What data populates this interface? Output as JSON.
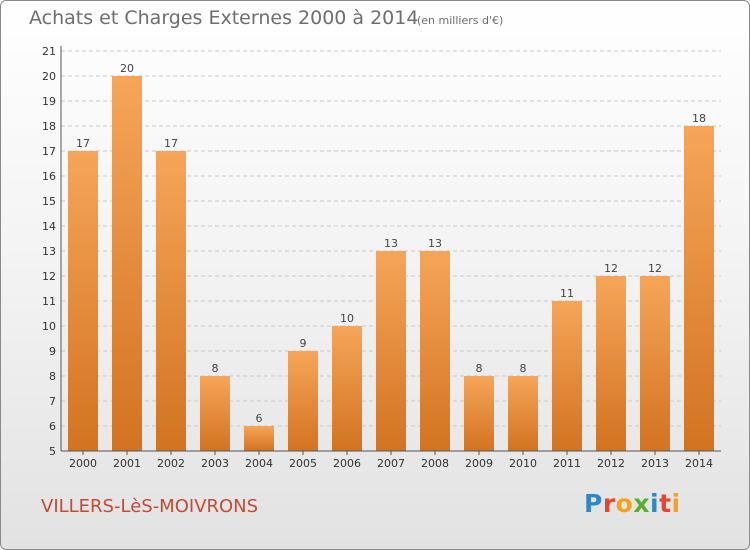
{
  "header": {
    "title": "Achats et Charges Externes 2000 à 2014",
    "unit": "(en milliers d'€)"
  },
  "footer": {
    "town": "VILLERS-LèS-MOIVRONS",
    "brand_letters": [
      "P",
      "r",
      "o",
      "x",
      "i",
      "t",
      "i"
    ]
  },
  "colors": {
    "bar_top": "#f6a558",
    "bar_bottom": "#d27321",
    "grid": "#c8c8c8",
    "town": "#c44a33",
    "brand": [
      "#2f87c8",
      "#e8452c",
      "#f2a31b",
      "#5aae2e",
      "#2f87c8",
      "#e8452c",
      "#f2a31b"
    ]
  },
  "chart_data": {
    "type": "bar",
    "title": "Achats et Charges Externes 2000 à 2014",
    "subtitle": "(en milliers d'€)",
    "categories": [
      "2000",
      "2001",
      "2002",
      "2003",
      "2004",
      "2005",
      "2006",
      "2007",
      "2008",
      "2009",
      "2010",
      "2011",
      "2012",
      "2013",
      "2014"
    ],
    "values": [
      17,
      20,
      17,
      8,
      6,
      9,
      10,
      13,
      13,
      8,
      8,
      11,
      12,
      12,
      18
    ],
    "yticks": [
      5,
      6,
      7,
      8,
      9,
      10,
      11,
      12,
      13,
      14,
      15,
      16,
      17,
      18,
      19,
      20,
      21
    ],
    "ylim": [
      5,
      21
    ],
    "grid": true,
    "data_labels": true,
    "xlabel": "",
    "ylabel": ""
  }
}
